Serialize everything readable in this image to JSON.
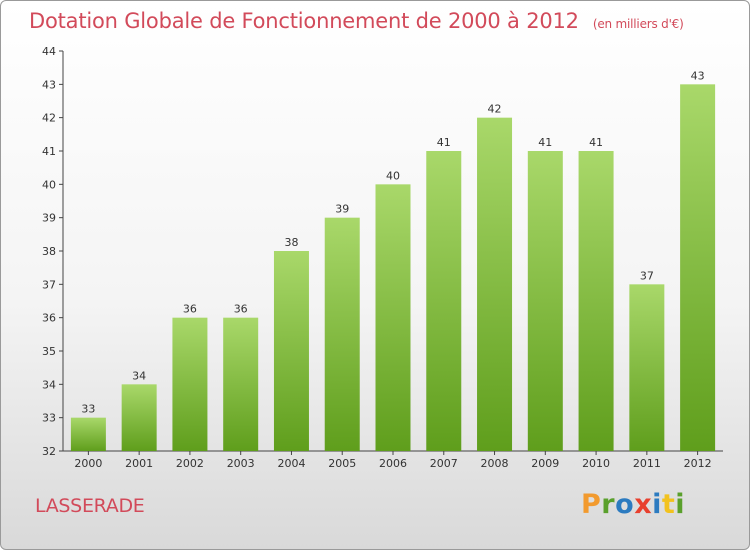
{
  "header": {
    "title": "Dotation Globale de Fonctionnement de 2000 à 2012",
    "unit": "(en milliers d'€)"
  },
  "footer": {
    "commune": "LASSERADE",
    "logo": "Proxiti",
    "logo_colors": [
      "#f29a2e",
      "#5aa02c",
      "#2c7bc0",
      "#e8402e",
      "#2c7bc0",
      "#f2c21e",
      "#5aa02c"
    ]
  },
  "colors": {
    "bar_light": "#a9d86a",
    "bar_dark": "#5f9e1c",
    "text_accent": "#d24a5a"
  },
  "chart_data": {
    "type": "bar",
    "title": "Dotation Globale de Fonctionnement de 2000 à 2012",
    "categories": [
      "2000",
      "2001",
      "2002",
      "2003",
      "2004",
      "2005",
      "2006",
      "2007",
      "2008",
      "2009",
      "2010",
      "2011",
      "2012"
    ],
    "values": [
      33,
      34,
      36,
      36,
      38,
      39,
      40,
      41,
      42,
      41,
      41,
      37,
      43
    ],
    "ylim": [
      32,
      44
    ],
    "yticks": [
      32,
      33,
      34,
      35,
      36,
      37,
      38,
      39,
      40,
      41,
      42,
      43,
      44
    ],
    "grid": false,
    "legend": "none"
  }
}
